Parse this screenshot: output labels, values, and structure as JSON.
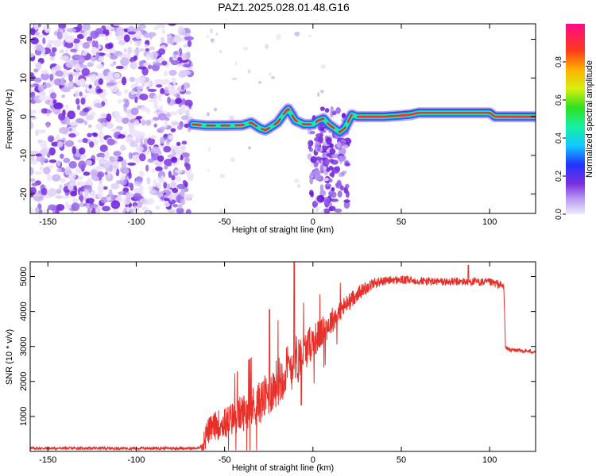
{
  "title": "PAZ1.2025.028.01.48.G16",
  "chart_data": [
    {
      "type": "heatmap",
      "name": "spectrogram",
      "xlabel": "Height of straight line (km)",
      "ylabel": "Frequency (Hz)",
      "xlim": [
        -160,
        126
      ],
      "ylim": [
        -25,
        24
      ],
      "xticks": [
        -150,
        -100,
        -50,
        0,
        50,
        100
      ],
      "yticks": [
        -20,
        -10,
        0,
        10,
        20
      ],
      "colorbar": {
        "label": "Normalized spectral amplitude",
        "range": [
          0,
          1
        ],
        "ticks": [
          0.0,
          0.2,
          0.4,
          0.6,
          0.8
        ],
        "colormap": "rainbow (lavender-purple-blue-cyan-green-yellow-orange-red-magenta)"
      },
      "ridge": {
        "x": [
          -68,
          -60,
          -50,
          -40,
          -35,
          -30,
          -27,
          -25,
          -20,
          -16,
          -14,
          -10,
          -5,
          0,
          3,
          6,
          9,
          12,
          15,
          18,
          22,
          25,
          30,
          40,
          50,
          55,
          60,
          70,
          80,
          90,
          100,
          103,
          110,
          126
        ],
        "y": [
          -2,
          -2.3,
          -2.3,
          -2.2,
          -1.5,
          -3,
          -3.5,
          -3,
          -1.5,
          1,
          2,
          -1,
          -2,
          -2,
          -1,
          -0.5,
          -2,
          -3,
          -4,
          -3,
          0.5,
          0,
          0,
          0,
          0.3,
          0.5,
          1,
          1,
          1,
          1,
          1,
          0,
          0,
          0
        ]
      },
      "noise_region_x": [
        -160,
        -69
      ]
    },
    {
      "type": "line",
      "name": "snr",
      "xlabel": "Height of straight line (km)",
      "ylabel": "SNR (10 * v/v)",
      "xlim": [
        -160,
        126
      ],
      "ylim": [
        0,
        5420
      ],
      "xticks": [
        -150,
        -100,
        -50,
        0,
        50,
        100
      ],
      "yticks": [
        1000,
        2000,
        3000,
        4000,
        5000
      ],
      "color": "#e8302a",
      "series": [
        {
          "x": [
            -160,
            -65,
            -62,
            -60,
            -55,
            -50,
            -45,
            -40,
            -35,
            -30,
            -25,
            -22,
            -20,
            -15,
            -10,
            -5,
            0,
            5,
            10,
            15,
            20,
            25,
            30,
            35,
            40,
            45,
            50,
            60,
            70,
            80,
            90,
            100,
            105,
            108,
            109,
            112,
            118,
            126
          ],
          "y": [
            90,
            90,
            200,
            550,
            750,
            800,
            950,
            1100,
            1250,
            1400,
            1650,
            1850,
            2000,
            2300,
            2600,
            2850,
            3150,
            3400,
            3700,
            4000,
            4250,
            4500,
            4680,
            4820,
            4870,
            4900,
            4900,
            4880,
            4850,
            4850,
            4850,
            4830,
            4780,
            4700,
            2950,
            2900,
            2880,
            2850
          ]
        }
      ]
    }
  ]
}
